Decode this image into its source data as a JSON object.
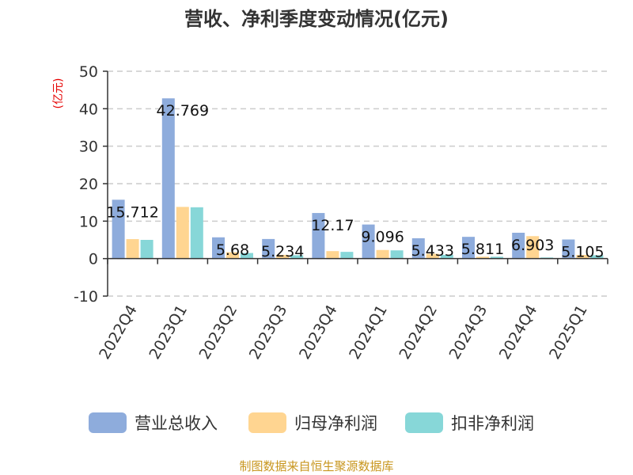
{
  "chart_data": {
    "type": "bar",
    "title": "营收、净利季度变动情况(亿元)",
    "ylabel": "(亿元)",
    "categories": [
      "2022Q4",
      "2023Q1",
      "2023Q2",
      "2023Q3",
      "2023Q4",
      "2024Q1",
      "2024Q2",
      "2024Q3",
      "2024Q4",
      "2025Q1"
    ],
    "series": [
      {
        "name": "营业总收入",
        "color": "#8eacdc",
        "values": [
          15.712,
          42.769,
          5.68,
          5.234,
          12.17,
          9.096,
          5.433,
          5.811,
          6.903,
          5.105
        ]
      },
      {
        "name": "归母净利润",
        "color": "#ffd591",
        "values": [
          5.2,
          13.8,
          1.7,
          1.0,
          2.0,
          2.3,
          1.3,
          0.5,
          6.0,
          1.0
        ]
      },
      {
        "name": "扣非净利润",
        "color": "#87d7d8",
        "values": [
          5.0,
          13.7,
          1.5,
          0.9,
          1.8,
          2.2,
          1.0,
          0.5,
          0.3,
          0.9
        ]
      }
    ],
    "data_labels": [
      "15.712",
      "42.769",
      "5.68",
      "5.234",
      "12.17",
      "9.096",
      "5.433",
      "5.811",
      "6.903",
      "5.105"
    ],
    "ylim": [
      -10,
      50
    ],
    "yticks": [
      50,
      40,
      30,
      20,
      10,
      0,
      -10
    ],
    "grid": true,
    "legend_position": "bottom"
  },
  "source": "制图数据来自恒生聚源数据库"
}
